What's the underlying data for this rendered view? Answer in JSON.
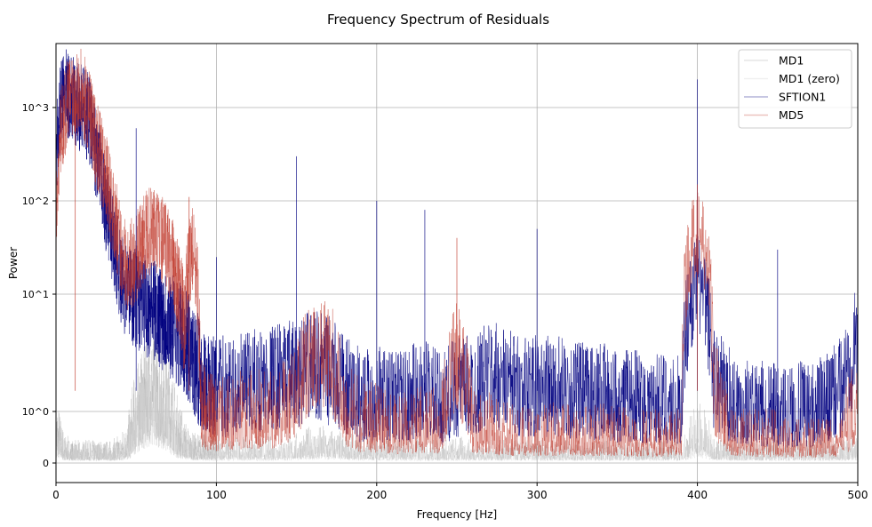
{
  "chart_data": {
    "type": "line",
    "title": "Frequency Spectrum of Residuals",
    "xlabel": "Frequency [Hz]",
    "ylabel": "Power",
    "xlim": [
      0,
      500
    ],
    "yscale": "symlog",
    "x_ticks": [
      0,
      100,
      200,
      300,
      400,
      500
    ],
    "y_ticks": [
      {
        "value": 0,
        "label": "0"
      },
      {
        "value": 1,
        "label": "10^0"
      },
      {
        "value": 10,
        "label": "10^1"
      },
      {
        "value": 100,
        "label": "10^2"
      },
      {
        "value": 1000,
        "label": "10^3"
      }
    ],
    "grid": true,
    "legend_position": "top-right",
    "x": [
      0,
      5,
      10,
      15,
      20,
      25,
      30,
      35,
      40,
      45,
      50,
      55,
      60,
      65,
      70,
      75,
      80,
      85,
      90,
      95,
      100,
      110,
      120,
      130,
      140,
      150,
      160,
      170,
      180,
      190,
      200,
      210,
      220,
      230,
      240,
      250,
      260,
      270,
      280,
      290,
      300,
      310,
      320,
      330,
      340,
      350,
      360,
      370,
      380,
      390,
      400,
      410,
      420,
      430,
      440,
      450,
      460,
      470,
      480,
      490,
      500
    ],
    "series": [
      {
        "name": "MD1",
        "color": "#aaaaaa",
        "values": [
          0.5,
          0.2,
          0.15,
          0.15,
          0.15,
          0.15,
          0.15,
          0.15,
          0.2,
          0.3,
          0.8,
          1.2,
          1.5,
          1.2,
          1.0,
          0.5,
          0.3,
          0.2,
          0.2,
          0.18,
          0.18,
          0.18,
          0.18,
          0.18,
          0.18,
          0.2,
          0.25,
          0.25,
          0.2,
          0.18,
          0.18,
          0.18,
          0.18,
          0.18,
          0.15,
          0.18,
          0.15,
          0.15,
          0.15,
          0.15,
          0.15,
          0.15,
          0.15,
          0.15,
          0.15,
          0.15,
          0.15,
          0.15,
          0.15,
          0.15,
          0.5,
          0.2,
          0.15,
          0.15,
          0.15,
          0.15,
          0.15,
          0.15,
          0.15,
          0.15,
          0.2
        ]
      },
      {
        "name": "MD1 (zero)",
        "color": "#cccccc",
        "values": [
          0.3,
          0.15,
          0.12,
          0.12,
          0.12,
          0.12,
          0.12,
          0.12,
          0.15,
          0.2,
          0.5,
          0.8,
          1.0,
          0.8,
          0.6,
          0.3,
          0.2,
          0.15,
          0.15,
          0.12,
          0.12,
          0.12,
          0.12,
          0.12,
          0.12,
          0.15,
          0.18,
          0.18,
          0.15,
          0.12,
          0.12,
          0.12,
          0.12,
          0.12,
          0.12,
          0.12,
          0.12,
          0.12,
          0.12,
          0.12,
          0.12,
          0.12,
          0.12,
          0.12,
          0.12,
          0.12,
          0.12,
          0.12,
          0.12,
          0.12,
          0.3,
          0.15,
          0.12,
          0.12,
          0.12,
          0.12,
          0.12,
          0.12,
          0.12,
          0.12,
          0.15
        ]
      },
      {
        "name": "SFTION1",
        "color": "#00007f",
        "values": [
          300,
          1500,
          1200,
          1000,
          800,
          300,
          100,
          40,
          15,
          12,
          10,
          9,
          8,
          7,
          6,
          5,
          4,
          3,
          2,
          1.5,
          1.5,
          1.5,
          1.6,
          1.8,
          2,
          2,
          2.5,
          2.2,
          1.5,
          1.2,
          1.2,
          1.2,
          1.2,
          1.5,
          1.0,
          1.5,
          1.5,
          2,
          1.8,
          1.5,
          1.5,
          1.5,
          1.4,
          1.3,
          1.3,
          1.2,
          1.2,
          1.1,
          1.1,
          1.0,
          15,
          2,
          1.2,
          1.0,
          0.9,
          0.9,
          0.9,
          0.9,
          1.0,
          1.5,
          4
        ]
      },
      {
        "name": "MD5",
        "color": "#c0392b",
        "values": [
          20,
          800,
          1500,
          1500,
          1000,
          400,
          200,
          80,
          30,
          20,
          25,
          40,
          50,
          40,
          30,
          15,
          5,
          30,
          1,
          0.7,
          0.7,
          0.7,
          0.8,
          0.8,
          0.9,
          1.5,
          3,
          3,
          1,
          0.6,
          0.6,
          0.5,
          0.5,
          0.6,
          0.5,
          3,
          0.5,
          0.5,
          0.4,
          0.4,
          0.4,
          0.4,
          0.4,
          0.4,
          0.4,
          0.4,
          0.35,
          0.35,
          0.35,
          0.4,
          50,
          1.5,
          0.4,
          0.35,
          0.35,
          0.35,
          0.3,
          0.3,
          0.3,
          0.4,
          1
        ]
      }
    ],
    "peaks": [
      {
        "series": "SFTION1",
        "x": 50,
        "y": 600
      },
      {
        "series": "SFTION1",
        "x": 100,
        "y": 25
      },
      {
        "series": "SFTION1",
        "x": 150,
        "y": 300
      },
      {
        "series": "SFTION1",
        "x": 200,
        "y": 100
      },
      {
        "series": "SFTION1",
        "x": 230,
        "y": 80
      },
      {
        "series": "SFTION1",
        "x": 300,
        "y": 50
      },
      {
        "series": "SFTION1",
        "x": 400,
        "y": 2000
      },
      {
        "series": "SFTION1",
        "x": 450,
        "y": 30
      },
      {
        "series": "MD5",
        "x": 83,
        "y": 110
      },
      {
        "series": "MD5",
        "x": 250,
        "y": 40
      },
      {
        "series": "MD5",
        "x": 400,
        "y": 150
      },
      {
        "series": "MD5",
        "x": 12,
        "y": 2500
      }
    ]
  }
}
